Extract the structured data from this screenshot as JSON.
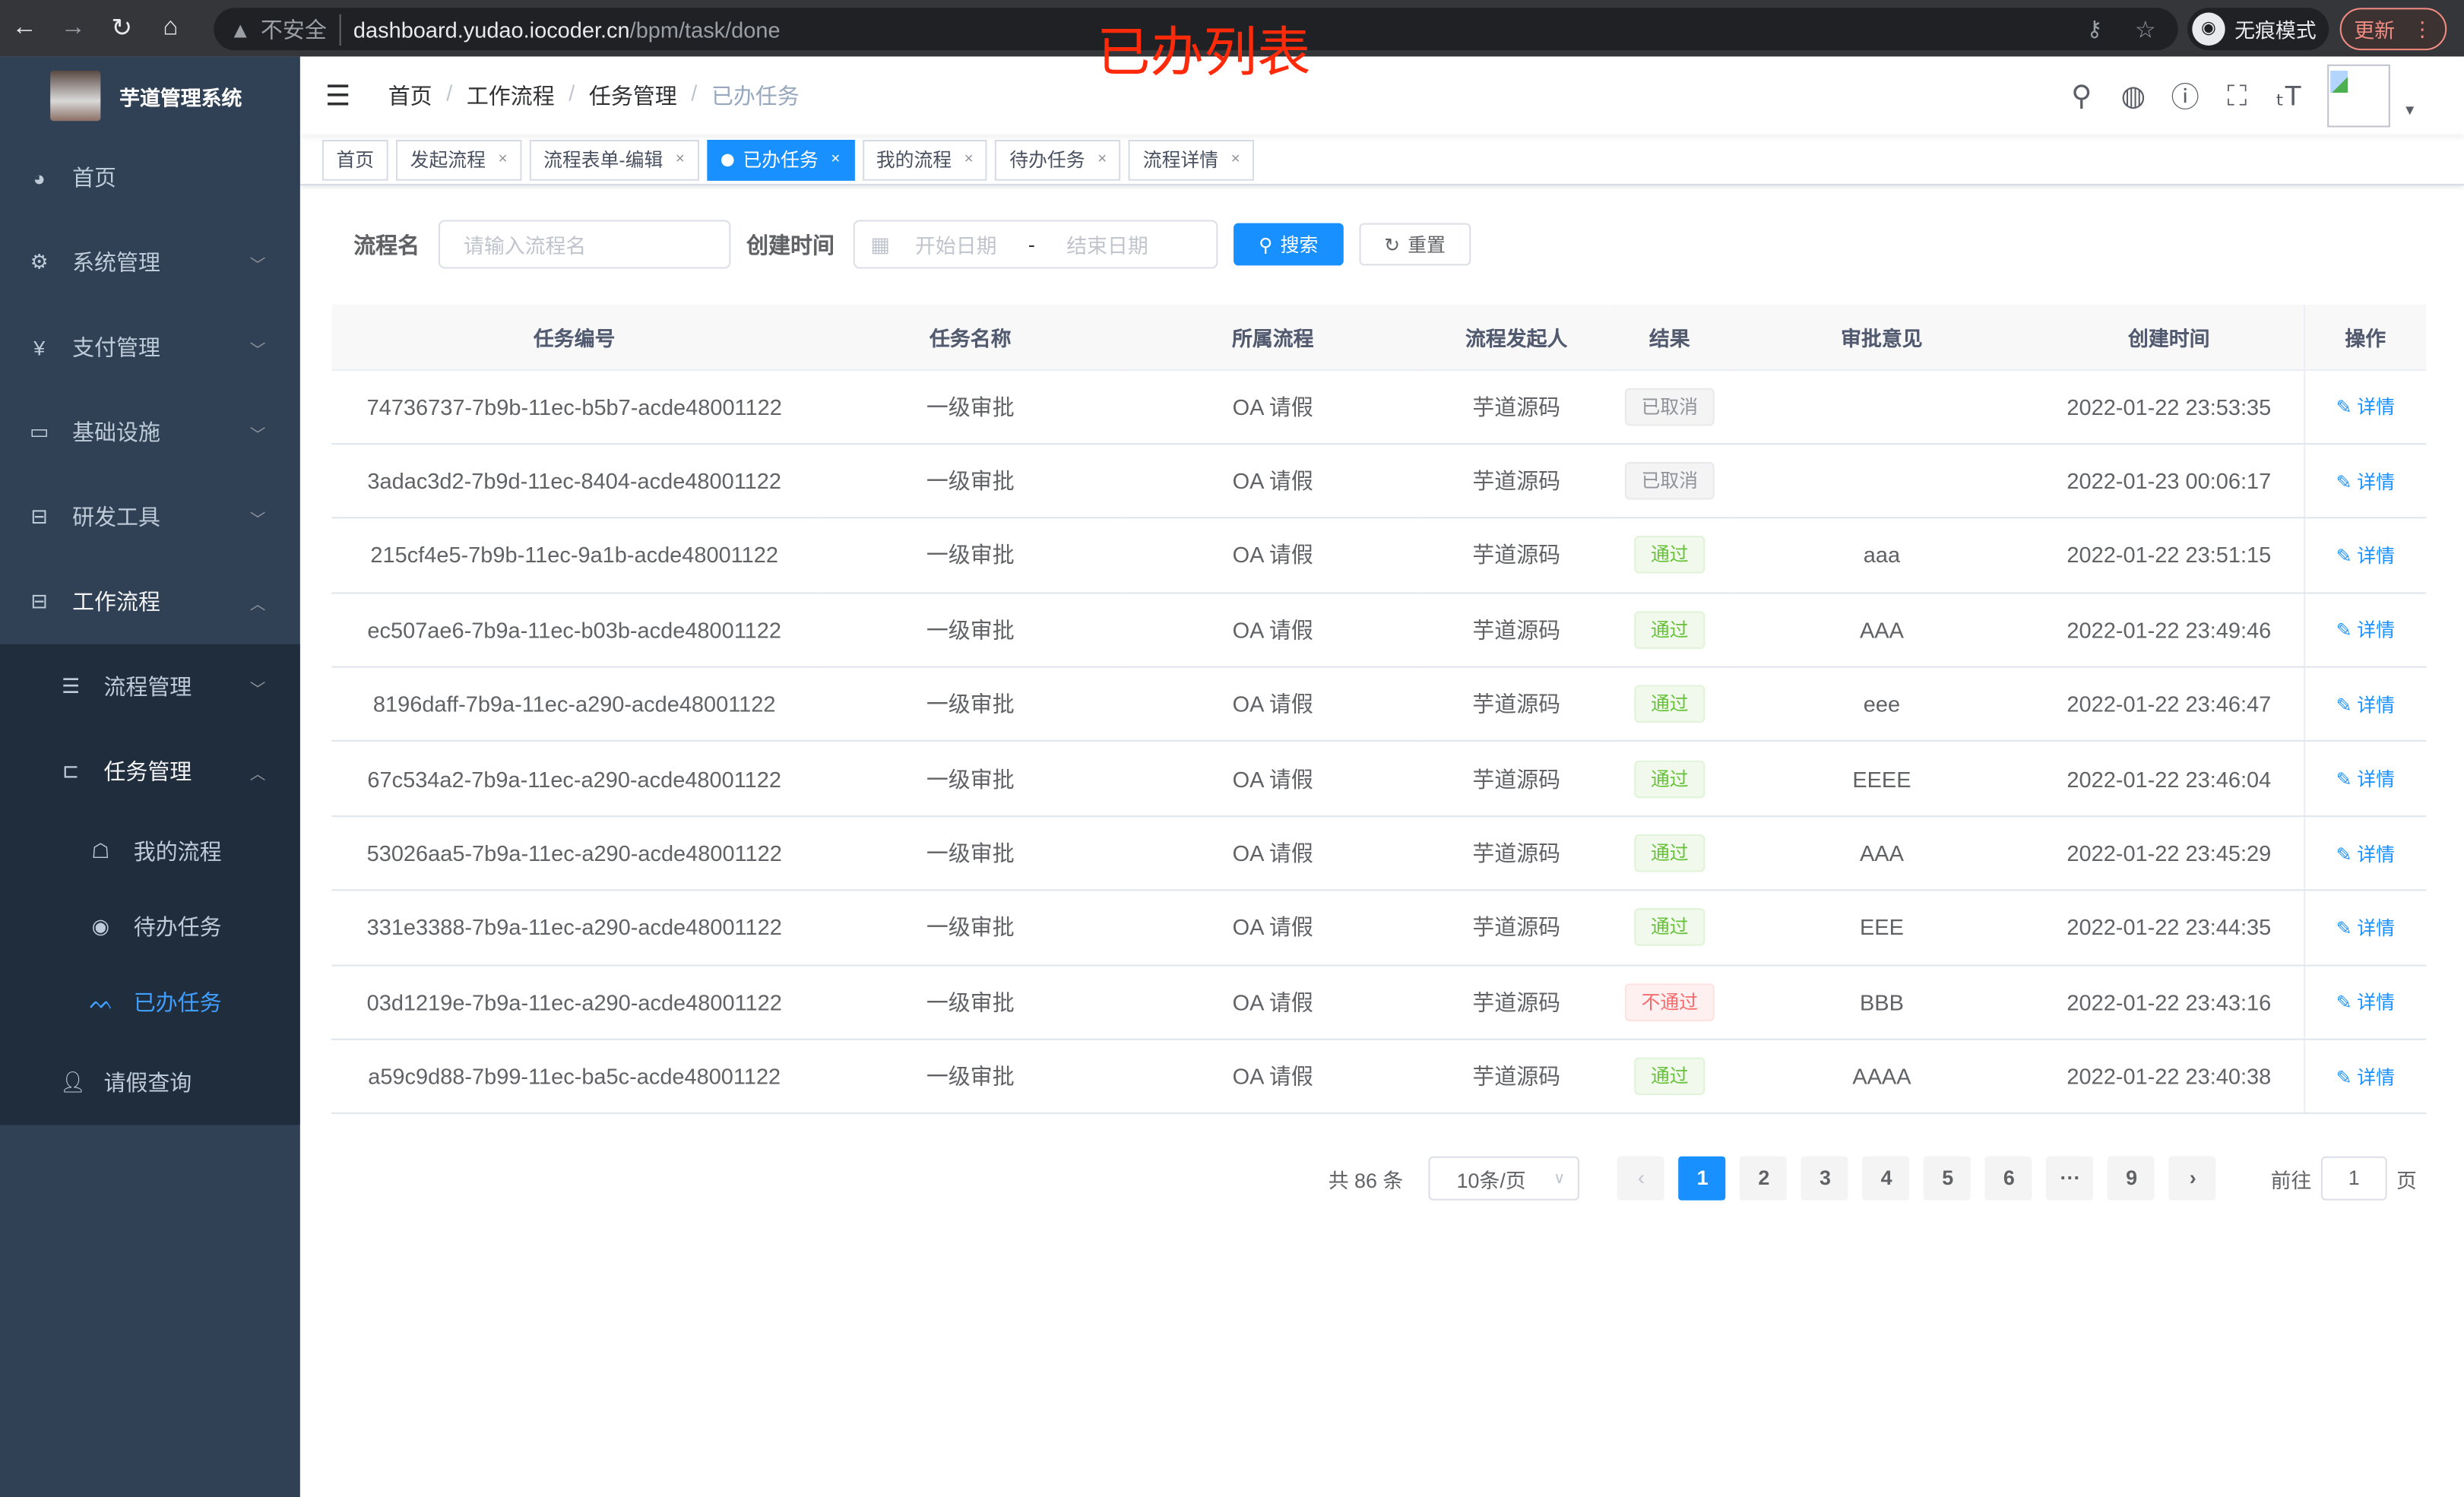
{
  "browser": {
    "insecure": "不安全",
    "host": "dashboard.yudao.iocoder.cn",
    "path": "/bpm/task/done",
    "incognito": "无痕模式",
    "update": "更新"
  },
  "overlay_title": "已办列表",
  "sidebar": {
    "title": "芋道管理系统",
    "items": [
      {
        "label": "首页",
        "icon": "dashboard-icon"
      },
      {
        "label": "系统管理",
        "icon": "gear-icon"
      },
      {
        "label": "支付管理",
        "icon": "yen-icon"
      },
      {
        "label": "基础设施",
        "icon": "monitor-icon"
      },
      {
        "label": "研发工具",
        "icon": "toolbox-icon"
      },
      {
        "label": "工作流程",
        "icon": "toolbox-icon"
      }
    ],
    "workflow_children": [
      {
        "label": "流程管理"
      },
      {
        "label": "任务管理"
      }
    ],
    "task_children": [
      {
        "label": "我的流程"
      },
      {
        "label": "待办任务"
      },
      {
        "label": "已办任务"
      }
    ],
    "leave": {
      "label": "请假查询"
    }
  },
  "breadcrumb": [
    "首页",
    "工作流程",
    "任务管理",
    "已办任务"
  ],
  "tags": [
    "首页",
    "发起流程",
    "流程表单-编辑",
    "已办任务",
    "我的流程",
    "待办任务",
    "流程详情"
  ],
  "active_tag": "已办任务",
  "filter": {
    "name_label": "流程名",
    "name_placeholder": "请输入流程名",
    "time_label": "创建时间",
    "start_placeholder": "开始日期",
    "range_sep": "-",
    "end_placeholder": "结束日期",
    "search": "搜索",
    "reset": "重置"
  },
  "table": {
    "headers": [
      "任务编号",
      "任务名称",
      "所属流程",
      "流程发起人",
      "结果",
      "审批意见",
      "创建时间",
      "操作"
    ],
    "action_label": "详情",
    "rows": [
      {
        "id": "74736737-7b9b-11ec-b5b7-acde48001122",
        "name": "一级审批",
        "process": "OA 请假",
        "starter": "芋道源码",
        "result": "已取消",
        "status": "cancel",
        "comment": "",
        "time": "2022-01-22 23:53:35"
      },
      {
        "id": "3adac3d2-7b9d-11ec-8404-acde48001122",
        "name": "一级审批",
        "process": "OA 请假",
        "starter": "芋道源码",
        "result": "已取消",
        "status": "cancel",
        "comment": "",
        "time": "2022-01-23 00:06:17"
      },
      {
        "id": "215cf4e5-7b9b-11ec-9a1b-acde48001122",
        "name": "一级审批",
        "process": "OA 请假",
        "starter": "芋道源码",
        "result": "通过",
        "status": "pass",
        "comment": "aaa",
        "time": "2022-01-22 23:51:15"
      },
      {
        "id": "ec507ae6-7b9a-11ec-b03b-acde48001122",
        "name": "一级审批",
        "process": "OA 请假",
        "starter": "芋道源码",
        "result": "通过",
        "status": "pass",
        "comment": "AAA",
        "time": "2022-01-22 23:49:46"
      },
      {
        "id": "8196daff-7b9a-11ec-a290-acde48001122",
        "name": "一级审批",
        "process": "OA 请假",
        "starter": "芋道源码",
        "result": "通过",
        "status": "pass",
        "comment": "eee",
        "time": "2022-01-22 23:46:47"
      },
      {
        "id": "67c534a2-7b9a-11ec-a290-acde48001122",
        "name": "一级审批",
        "process": "OA 请假",
        "starter": "芋道源码",
        "result": "通过",
        "status": "pass",
        "comment": "EEEE",
        "time": "2022-01-22 23:46:04"
      },
      {
        "id": "53026aa5-7b9a-11ec-a290-acde48001122",
        "name": "一级审批",
        "process": "OA 请假",
        "starter": "芋道源码",
        "result": "通过",
        "status": "pass",
        "comment": "AAA",
        "time": "2022-01-22 23:45:29"
      },
      {
        "id": "331e3388-7b9a-11ec-a290-acde48001122",
        "name": "一级审批",
        "process": "OA 请假",
        "starter": "芋道源码",
        "result": "通过",
        "status": "pass",
        "comment": "EEE",
        "time": "2022-01-22 23:44:35"
      },
      {
        "id": "03d1219e-7b9a-11ec-a290-acde48001122",
        "name": "一级审批",
        "process": "OA 请假",
        "starter": "芋道源码",
        "result": "不通过",
        "status": "fail",
        "comment": "BBB",
        "time": "2022-01-22 23:43:16"
      },
      {
        "id": "a59c9d88-7b99-11ec-ba5c-acde48001122",
        "name": "一级审批",
        "process": "OA 请假",
        "starter": "芋道源码",
        "result": "通过",
        "status": "pass",
        "comment": "AAAA",
        "time": "2022-01-22 23:40:38"
      }
    ]
  },
  "pagination": {
    "total": "共 86 条",
    "page_size": "10条/页",
    "pages": [
      "1",
      "2",
      "3",
      "4",
      "5",
      "6",
      "···",
      "9"
    ],
    "current": "1",
    "goto_label": "前往",
    "goto_value": "1",
    "page_unit": "页"
  },
  "colors": {
    "primary": "#1890ff",
    "sidebar": "#304156",
    "pass": "#67c23a",
    "fail": "#f56c6c",
    "cancel": "#909399"
  }
}
